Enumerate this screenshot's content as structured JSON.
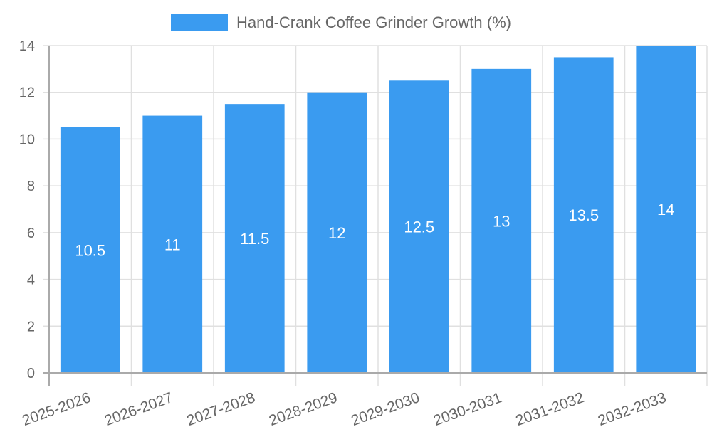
{
  "legend": {
    "label": "Hand-Crank Coffee Grinder Growth (%)",
    "color": "#3a9bf0"
  },
  "chart_data": {
    "type": "bar",
    "title": "",
    "categories": [
      "2025-2026",
      "2026-2027",
      "2027-2028",
      "2028-2029",
      "2029-2030",
      "2030-2031",
      "2031-2032",
      "2032-2033"
    ],
    "series": [
      {
        "name": "Hand-Crank Coffee Grinder Growth (%)",
        "values": [
          10.5,
          11,
          11.5,
          12,
          12.5,
          13,
          13.5,
          14
        ],
        "color": "#3a9bf0"
      }
    ],
    "xlabel": "",
    "ylabel": "",
    "ylim": [
      0,
      14
    ],
    "yticks": [
      0,
      2,
      4,
      6,
      8,
      10,
      12,
      14
    ],
    "grid": true,
    "legend_position": "top",
    "data_labels": true
  }
}
